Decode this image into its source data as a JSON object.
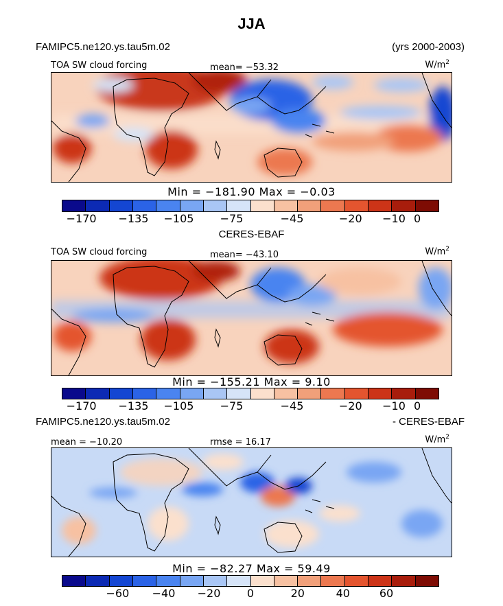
{
  "figure": {
    "title": "JJA",
    "model_name": "FAMIPC5.ne120.ys.tau5m.02",
    "years": "(yrs 2000-2003)",
    "obs_name": "CERES-EBAF",
    "diff_left": "FAMIPC5.ne120.ys.tau5m.02",
    "diff_right": "- CERES-EBAF"
  },
  "colors": {
    "main_palette": [
      "#0a0a8c",
      "#0c2ab4",
      "#1446d2",
      "#2b63e6",
      "#4a84f0",
      "#79a6f3",
      "#a9c6f5",
      "#d6e4f8",
      "#fbe0cd",
      "#f7c1a2",
      "#f1a07a",
      "#ec7850",
      "#e4552f",
      "#cc3418",
      "#a81d0c",
      "#7e0c04"
    ],
    "diff_palette": [
      "#0a0a8c",
      "#0c2ab4",
      "#1446d2",
      "#2b63e6",
      "#4a84f0",
      "#79a6f3",
      "#a9c6f5",
      "#d6e4f8",
      "#fbe0cd",
      "#f7c1a2",
      "#f1a07a",
      "#ec7850",
      "#e4552f",
      "#cc3418",
      "#a81d0c",
      "#7e0c04"
    ]
  },
  "chart_data": [
    {
      "type": "heatmap",
      "name": "model",
      "title": "TOA SW cloud forcing",
      "mean_text": "mean= -53.32",
      "units": "W/m",
      "units_sup": "2",
      "min_max_text": "Min = -181.90 Max =  -0.03",
      "colorbar_ticks": [
        "-170",
        "-135",
        "-105",
        "-75",
        "-45",
        "-20",
        "-10",
        "0"
      ]
    },
    {
      "type": "heatmap",
      "name": "obs",
      "title": "TOA SW cloud forcing",
      "mean_text": "mean= -43.10",
      "units": "W/m",
      "units_sup": "2",
      "min_max_text": "Min = -155.21 Max =   9.10",
      "colorbar_ticks": [
        "-170",
        "-135",
        "-105",
        "-75",
        "-45",
        "-20",
        "-10",
        "0"
      ]
    },
    {
      "type": "heatmap",
      "name": "difference",
      "mean_text": "mean = -10.20",
      "rmse_text": "rmse =  16.17",
      "units": "W/m",
      "units_sup": "2",
      "min_max_text": "Min = -82.27 Max =  59.49",
      "colorbar_ticks": [
        "-60",
        "-40",
        "-20",
        "0",
        "20",
        "40",
        "60"
      ]
    }
  ]
}
